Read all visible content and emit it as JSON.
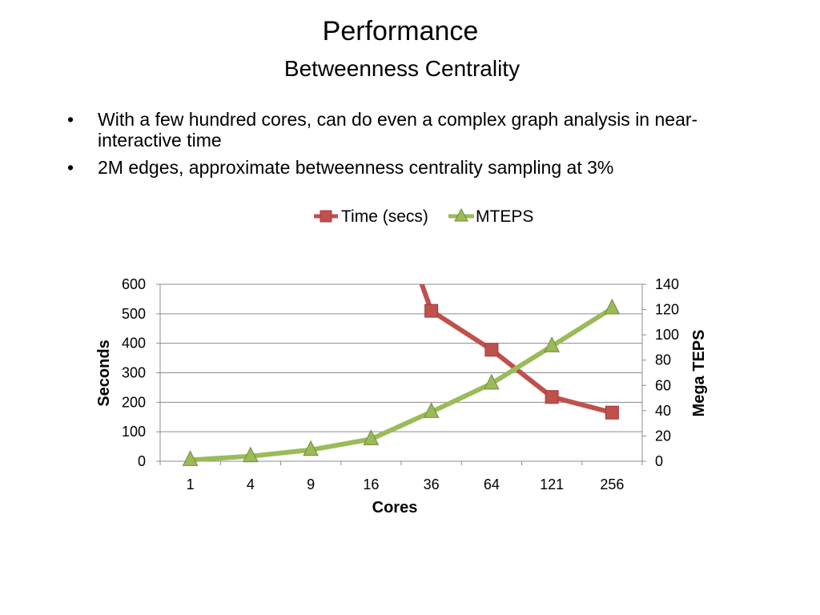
{
  "slide": {
    "title": "Performance",
    "subtitle": "Betweenness Centrality",
    "bullets": [
      "With a few hundred cores, can do even a complex graph analysis in near-interactive time",
      "2M edges, approximate betweenness centrality sampling at 3%"
    ],
    "bullet_symbol": "•"
  },
  "chart_data": {
    "type": "line",
    "categories": [
      "1",
      "4",
      "9",
      "16",
      "36",
      "64",
      "121",
      "256"
    ],
    "xlabel": "Cores",
    "ylabel_left": "Seconds",
    "ylabel_right": "Mega TEPS",
    "ylim_left": [
      0,
      600
    ],
    "yticks_left": [
      0,
      100,
      200,
      300,
      400,
      500,
      600
    ],
    "ylim_right": [
      0,
      140
    ],
    "yticks_right": [
      0,
      20,
      40,
      60,
      80,
      100,
      120,
      140
    ],
    "grid": true,
    "legend_position": "top-center",
    "series": [
      {
        "name": "Time (secs)",
        "axis": "left",
        "marker": "square",
        "color": "#c0504d",
        "values": [
          null,
          null,
          null,
          null,
          510,
          378,
          218,
          165
        ],
        "clipped_upper_entry": true
      },
      {
        "name": "MTEPS",
        "axis": "right",
        "marker": "triangle",
        "color": "#9bbb59",
        "values": [
          1,
          4,
          9,
          17.5,
          39,
          61.5,
          91,
          121
        ]
      }
    ]
  }
}
